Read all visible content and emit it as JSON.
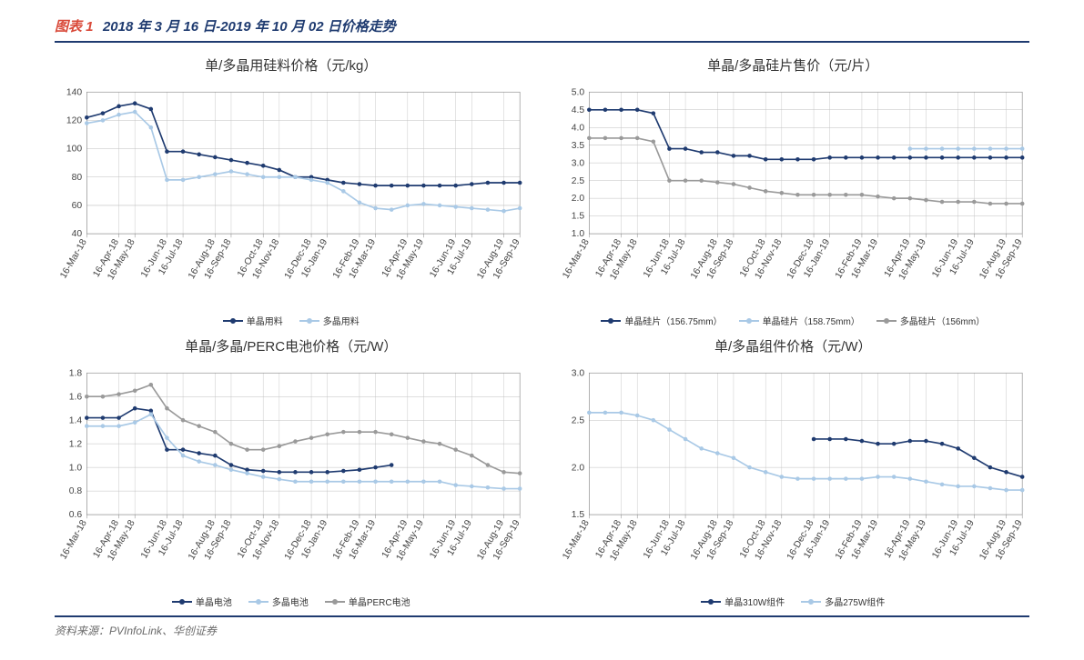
{
  "header": {
    "figure_label": "图表 1",
    "title": "2018 年 3 月 16 日-2019 年 10 月 02 日价格走势"
  },
  "footer": "资料来源：PVInfoLink、华创证券",
  "xaxis_labels": [
    "16-Mar-18",
    "16-Apr-18",
    "16-May-18",
    "16-Jun-18",
    "16-Jul-18",
    "16-Aug-18",
    "16-Sep-18",
    "16-Oct-18",
    "16-Nov-18",
    "16-Dec-18",
    "16-Jan-19",
    "16-Feb-19",
    "16-Mar-19",
    "16-Apr-19",
    "16-May-19",
    "16-Jun-19",
    "16-Jul-19",
    "16-Aug-19",
    "16-Sep-19"
  ],
  "colors": {
    "series_dark": "#1f3b70",
    "series_light": "#a9c9e6",
    "series_gray": "#9a9a9a",
    "grid": "#bfbfbf",
    "axis": "#888"
  },
  "charts": [
    {
      "id": "chart1",
      "title": "单/多晶用硅料价格（元/kg）",
      "ylim": [
        40,
        140
      ],
      "ytick_step": 20,
      "series": [
        {
          "name": "单晶用料",
          "color_key": "series_dark",
          "data": [
            122,
            125,
            130,
            132,
            128,
            98,
            98,
            96,
            94,
            92,
            90,
            88,
            85,
            80,
            80,
            78,
            76,
            75,
            74,
            74,
            74,
            74,
            74,
            74,
            75,
            76,
            76,
            76
          ]
        },
        {
          "name": "多晶用料",
          "color_key": "series_light",
          "data": [
            118,
            120,
            124,
            126,
            115,
            78,
            78,
            80,
            82,
            84,
            82,
            80,
            80,
            80,
            78,
            76,
            70,
            62,
            58,
            57,
            60,
            61,
            60,
            59,
            58,
            57,
            56,
            58
          ]
        }
      ],
      "legend": [
        {
          "label": "单晶用料",
          "color_key": "series_dark"
        },
        {
          "label": "多晶用料",
          "color_key": "series_light"
        }
      ]
    },
    {
      "id": "chart2",
      "title": "单晶/多晶硅片售价（元/片）",
      "ylim": [
        1,
        5
      ],
      "ytick_step": 0.5,
      "series": [
        {
          "name": "单晶硅片156.75",
          "color_key": "series_dark",
          "data": [
            4.5,
            4.5,
            4.5,
            4.5,
            4.4,
            3.4,
            3.4,
            3.3,
            3.3,
            3.2,
            3.2,
            3.1,
            3.1,
            3.1,
            3.1,
            3.15,
            3.15,
            3.15,
            3.15,
            3.15,
            3.15,
            3.15,
            3.15,
            3.15,
            3.15,
            3.15,
            3.15,
            3.15
          ]
        },
        {
          "name": "单晶硅片158.75",
          "color_key": "series_light",
          "data": [
            null,
            null,
            null,
            null,
            null,
            null,
            null,
            null,
            null,
            null,
            null,
            null,
            null,
            null,
            null,
            null,
            null,
            null,
            null,
            null,
            3.4,
            3.4,
            3.4,
            3.4,
            3.4,
            3.4,
            3.4,
            3.4
          ]
        },
        {
          "name": "多晶硅片156",
          "color_key": "series_gray",
          "data": [
            3.7,
            3.7,
            3.7,
            3.7,
            3.6,
            2.5,
            2.5,
            2.5,
            2.45,
            2.4,
            2.3,
            2.2,
            2.15,
            2.1,
            2.1,
            2.1,
            2.1,
            2.1,
            2.05,
            2.0,
            2.0,
            1.95,
            1.9,
            1.9,
            1.9,
            1.85,
            1.85,
            1.85
          ]
        }
      ],
      "legend": [
        {
          "label": "单晶硅片（156.75mm）",
          "color_key": "series_dark"
        },
        {
          "label": "单晶硅片（158.75mm）",
          "color_key": "series_light"
        },
        {
          "label": "多晶硅片（156mm）",
          "color_key": "series_gray"
        }
      ]
    },
    {
      "id": "chart3",
      "title": "单晶/多晶/PERC电池价格（元/W）",
      "ylim": [
        0.6,
        1.8
      ],
      "ytick_step": 0.2,
      "series": [
        {
          "name": "单晶电池",
          "color_key": "series_dark",
          "data": [
            1.42,
            1.42,
            1.42,
            1.5,
            1.48,
            1.15,
            1.15,
            1.12,
            1.1,
            1.02,
            0.98,
            0.97,
            0.96,
            0.96,
            0.96,
            0.96,
            0.97,
            0.98,
            1.0,
            1.02,
            null,
            null,
            null,
            null,
            null,
            null,
            null,
            null
          ]
        },
        {
          "name": "多晶电池",
          "color_key": "series_light",
          "data": [
            1.35,
            1.35,
            1.35,
            1.38,
            1.45,
            1.25,
            1.1,
            1.05,
            1.02,
            0.98,
            0.95,
            0.92,
            0.9,
            0.88,
            0.88,
            0.88,
            0.88,
            0.88,
            0.88,
            0.88,
            0.88,
            0.88,
            0.88,
            0.85,
            0.84,
            0.83,
            0.82,
            0.82
          ]
        },
        {
          "name": "单晶PERC电池",
          "color_key": "series_gray",
          "data": [
            1.6,
            1.6,
            1.62,
            1.65,
            1.7,
            1.5,
            1.4,
            1.35,
            1.3,
            1.2,
            1.15,
            1.15,
            1.18,
            1.22,
            1.25,
            1.28,
            1.3,
            1.3,
            1.3,
            1.28,
            1.25,
            1.22,
            1.2,
            1.15,
            1.1,
            1.02,
            0.96,
            0.95
          ]
        }
      ],
      "legend": [
        {
          "label": "单晶电池",
          "color_key": "series_dark"
        },
        {
          "label": "多晶电池",
          "color_key": "series_light"
        },
        {
          "label": "单晶PERC电池",
          "color_key": "series_gray"
        }
      ]
    },
    {
      "id": "chart4",
      "title": "单/多晶组件价格（元/W）",
      "ylim": [
        1.5,
        3.0
      ],
      "ytick_step": 0.5,
      "series": [
        {
          "name": "单晶310W组件",
          "color_key": "series_dark",
          "data": [
            null,
            null,
            null,
            null,
            null,
            null,
            null,
            null,
            null,
            null,
            null,
            null,
            null,
            null,
            2.3,
            2.3,
            2.3,
            2.28,
            2.25,
            2.25,
            2.28,
            2.28,
            2.25,
            2.2,
            2.1,
            2.0,
            1.95,
            1.9
          ]
        },
        {
          "name": "多晶275W组件",
          "color_key": "series_light",
          "data": [
            2.58,
            2.58,
            2.58,
            2.55,
            2.5,
            2.4,
            2.3,
            2.2,
            2.15,
            2.1,
            2.0,
            1.95,
            1.9,
            1.88,
            1.88,
            1.88,
            1.88,
            1.88,
            1.9,
            1.9,
            1.88,
            1.85,
            1.82,
            1.8,
            1.8,
            1.78,
            1.76,
            1.76
          ]
        }
      ],
      "legend": [
        {
          "label": "单晶310W组件",
          "color_key": "series_dark"
        },
        {
          "label": "多晶275W组件",
          "color_key": "series_light"
        }
      ]
    }
  ],
  "style": {
    "line_width": 1.6,
    "marker_radius": 2.2,
    "grid_on": true,
    "label_fontsize": 10,
    "title_fontsize": 15
  }
}
